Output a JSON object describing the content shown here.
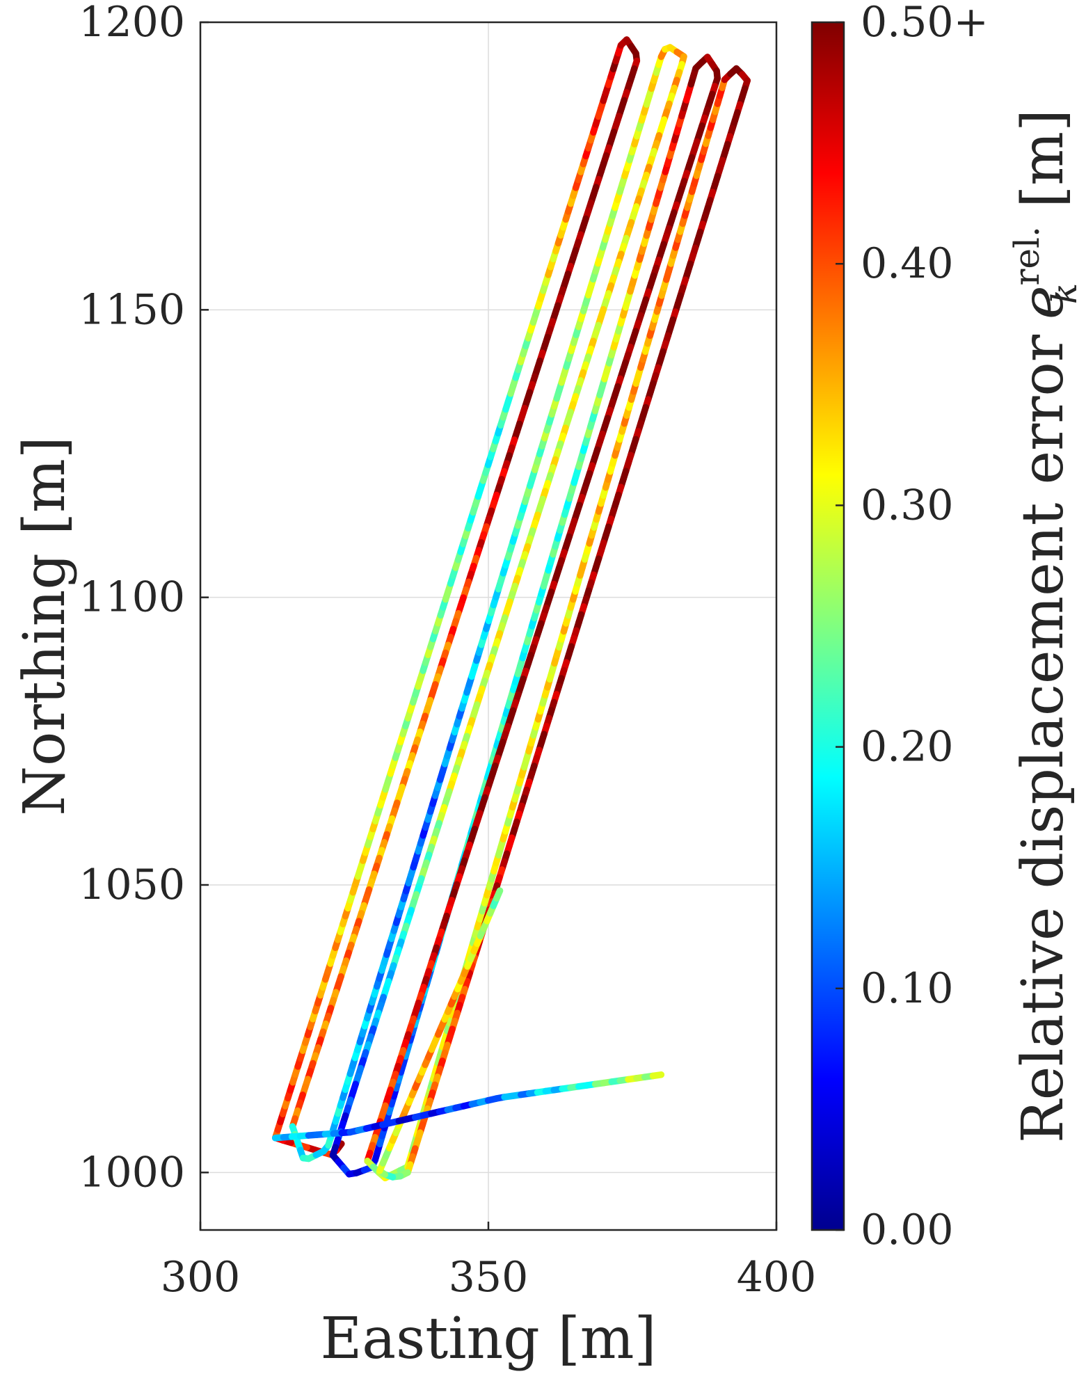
{
  "chart_data": {
    "type": "line",
    "xlabel": "Easting [m]",
    "ylabel": "Northing [m]",
    "xlim": [
      300,
      400
    ],
    "ylim": [
      990,
      1200
    ],
    "xticks": [
      300,
      350,
      400
    ],
    "yticks": [
      1000,
      1050,
      1100,
      1150,
      1200
    ],
    "xtick_labels": [
      "300",
      "350",
      "400"
    ],
    "ytick_labels": [
      "1000",
      "1050",
      "1100",
      "1150",
      "1200"
    ],
    "grid": true,
    "colormap": "jet",
    "colorbar": {
      "label": "Relative displacement error",
      "label_symbol": "e",
      "label_subscript": "k",
      "label_superscript": "rel.",
      "label_unit": "[m]",
      "range": [
        0.0,
        0.5
      ],
      "ticks": [
        0.0,
        0.1,
        0.2,
        0.3,
        0.4,
        0.5
      ],
      "tick_labels": [
        "0.00",
        "0.10",
        "0.20",
        "0.30",
        "0.40",
        "0.50+"
      ],
      "colors": [
        "#00008f",
        "#0000ff",
        "#0080ff",
        "#00ffff",
        "#80ff80",
        "#ffff00",
        "#ff8000",
        "#ff0000",
        "#800000"
      ]
    },
    "series": [
      {
        "x": [
          324.5,
          323.0,
          313.0,
          373.0
        ],
        "y": [
          1005,
          1003,
          1006,
          1196
        ],
        "values": [
          0.45,
          0.3,
          0.2,
          0.48
        ]
      },
      {
        "x": [
          373.0,
          374.0,
          376.0,
          316.0
        ],
        "y": [
          1196,
          1197,
          1194,
          1008
        ],
        "values": [
          0.5,
          0.5,
          0.35,
          0.4
        ]
      },
      {
        "x": [
          316.0,
          318.0,
          322.0,
          380.0
        ],
        "y": [
          1008,
          1002,
          1004,
          1194
        ],
        "values": [
          0.2,
          0.1,
          0.25,
          0.32
        ]
      },
      {
        "x": [
          380.0,
          381.0,
          384.0,
          323.0
        ],
        "y": [
          1194,
          1196,
          1194,
          1003
        ],
        "values": [
          0.35,
          0.3,
          0.3,
          0.05
        ]
      },
      {
        "x": [
          323.0,
          326.0,
          330.0,
          386.0
        ],
        "y": [
          1003,
          999.5,
          1001,
          1192
        ],
        "values": [
          0.05,
          0.2,
          0.22,
          0.48
        ]
      },
      {
        "x": [
          386.0,
          388.0,
          390.0,
          329.0
        ],
        "y": [
          1192,
          1194,
          1191,
          1002
        ],
        "values": [
          0.5,
          0.5,
          0.5,
          0.4
        ]
      },
      {
        "x": [
          329.0,
          332.0,
          336.0,
          391.0
        ],
        "y": [
          1002,
          999,
          1001,
          1190
        ],
        "values": [
          0.28,
          0.3,
          0.34,
          0.4
        ]
      },
      {
        "x": [
          391.0,
          393.0,
          395.0,
          336.0
        ],
        "y": [
          1190,
          1192,
          1190,
          1000
        ],
        "values": [
          0.5,
          0.5,
          0.48,
          0.36
        ]
      },
      {
        "x": [
          336.0,
          334.0,
          331.0,
          352.0
        ],
        "y": [
          1000,
          999,
          1000,
          1049
        ],
        "values": [
          0.22,
          0.36,
          0.36,
          0.24
        ]
      },
      {
        "x": [
          313.0,
          326.0,
          352.0,
          380.0
        ],
        "y": [
          1006,
          1007,
          1013,
          1017
        ],
        "values": [
          0.18,
          0.05,
          0.15,
          0.3
        ]
      }
    ]
  }
}
